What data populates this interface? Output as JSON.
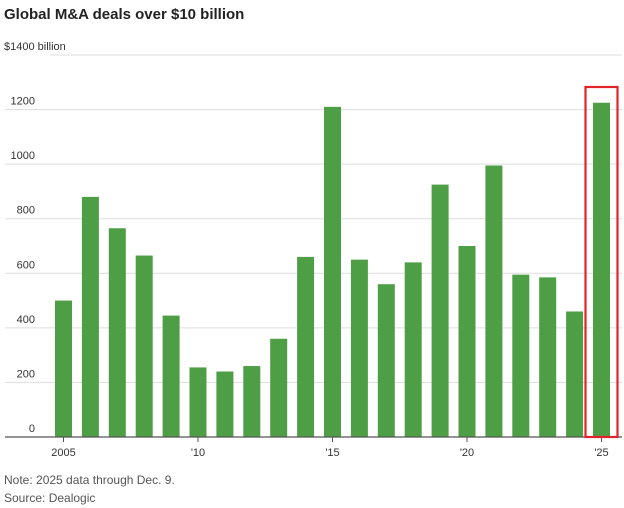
{
  "chart_data": {
    "type": "bar",
    "title": "Global M&A deals over $10 billion",
    "y_unit_label": "$1400 billion",
    "categories": [
      "2005",
      "2006",
      "2007",
      "2008",
      "2009",
      "2010",
      "2011",
      "2012",
      "2013",
      "2014",
      "2015",
      "2016",
      "2017",
      "2018",
      "2019",
      "2020",
      "2021",
      "2022",
      "2023",
      "2024",
      "2025"
    ],
    "values": [
      500,
      880,
      765,
      665,
      445,
      255,
      240,
      260,
      360,
      660,
      1210,
      650,
      560,
      640,
      925,
      700,
      995,
      595,
      585,
      460,
      1225
    ],
    "y_ticks": [
      0,
      200,
      400,
      600,
      800,
      1000,
      1200
    ],
    "ylim": [
      0,
      1400
    ],
    "x_tick_labels": {
      "2005": "2005",
      "2010": "'10",
      "2015": "'15",
      "2020": "'20",
      "2025": "'25"
    },
    "highlight_category": "2025",
    "grid": true,
    "colors": {
      "bar": "#4e9e45",
      "highlight_box": "#e2242a",
      "grid": "#dddddd",
      "axis": "#555555"
    }
  },
  "notes": {
    "note": "Note: 2025 data through Dec. 9.",
    "source": "Source: Dealogic"
  }
}
